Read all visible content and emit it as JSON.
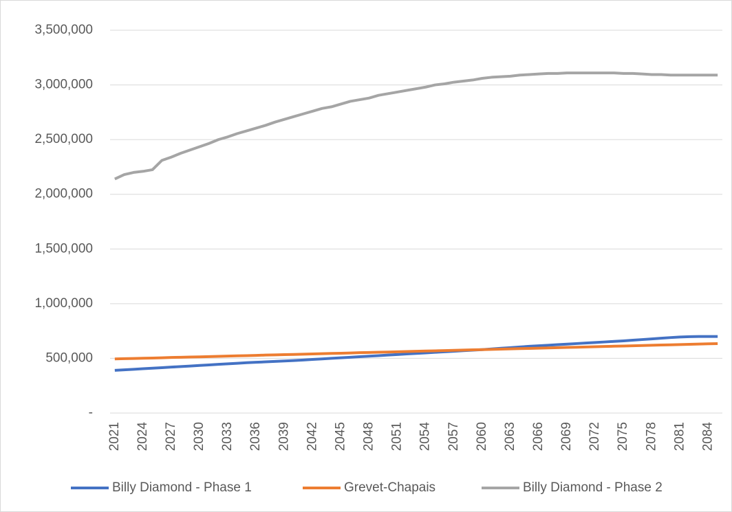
{
  "chart_data": {
    "type": "line",
    "categories": [
      "2021",
      null,
      null,
      "2024",
      null,
      null,
      "2027",
      null,
      null,
      "2030",
      null,
      null,
      "2033",
      null,
      null,
      "2036",
      null,
      null,
      "2039",
      null,
      null,
      "2042",
      null,
      null,
      "2045",
      null,
      null,
      "2048",
      null,
      null,
      "2051",
      null,
      null,
      "2054",
      null,
      null,
      "2057",
      null,
      null,
      "2060",
      null,
      null,
      "2063",
      null,
      null,
      "2066",
      null,
      null,
      "2069",
      null,
      null,
      "2072",
      null,
      null,
      "2075",
      null,
      null,
      "2078",
      null,
      null,
      "2081",
      null,
      null,
      "2084",
      null
    ],
    "series": [
      {
        "name": "Billy Diamond - Phase 1",
        "color": "#4472c4",
        "values": [
          390000,
          395000,
          400000,
          405000,
          410000,
          415000,
          420000,
          425000,
          430000,
          435000,
          440000,
          445000,
          450000,
          455000,
          460000,
          464000,
          468000,
          472000,
          476000,
          480000,
          485000,
          490000,
          495000,
          500000,
          505000,
          510000,
          515000,
          520000,
          525000,
          530000,
          535000,
          540000,
          545000,
          550000,
          555000,
          560000,
          565000,
          570000,
          575000,
          580000,
          586000,
          592000,
          598000,
          604000,
          610000,
          615000,
          620000,
          625000,
          630000,
          635000,
          640000,
          645000,
          650000,
          655000,
          660000,
          666000,
          672000,
          678000,
          684000,
          690000,
          695000,
          698000,
          700000,
          700000,
          700000
        ]
      },
      {
        "name": "Grevet-Chapais",
        "color": "#ed7d31",
        "values": [
          495000,
          497000,
          499000,
          501000,
          503000,
          505000,
          508000,
          510000,
          512000,
          514000,
          516000,
          518000,
          521000,
          523000,
          525000,
          527000,
          530000,
          532000,
          534000,
          536000,
          538000,
          540000,
          543000,
          545000,
          547000,
          549000,
          552000,
          554000,
          556000,
          558000,
          560000,
          562000,
          565000,
          567000,
          569000,
          571000,
          573000,
          576000,
          578000,
          580000,
          582000,
          584000,
          587000,
          589000,
          591000,
          593000,
          595000,
          598000,
          600000,
          602000,
          604000,
          606000,
          609000,
          611000,
          613000,
          615000,
          617000,
          620000,
          622000,
          624000,
          626000,
          628000,
          631000,
          633000,
          635000
        ]
      },
      {
        "name": "Billy Diamond - Phase 2",
        "color": "#a5a5a5",
        "values": [
          2140000,
          2180000,
          2200000,
          2210000,
          2225000,
          2310000,
          2340000,
          2375000,
          2405000,
          2435000,
          2465000,
          2500000,
          2525000,
          2555000,
          2580000,
          2605000,
          2630000,
          2660000,
          2685000,
          2710000,
          2735000,
          2760000,
          2785000,
          2800000,
          2825000,
          2850000,
          2865000,
          2880000,
          2905000,
          2920000,
          2935000,
          2950000,
          2965000,
          2980000,
          3000000,
          3010000,
          3025000,
          3035000,
          3045000,
          3060000,
          3070000,
          3075000,
          3080000,
          3090000,
          3095000,
          3100000,
          3105000,
          3105000,
          3110000,
          3110000,
          3110000,
          3110000,
          3110000,
          3110000,
          3105000,
          3105000,
          3100000,
          3095000,
          3095000,
          3090000,
          3090000,
          3090000,
          3090000,
          3090000,
          3090000
        ]
      }
    ],
    "ylim": [
      0,
      3500000
    ],
    "yticks": [
      {
        "value": 0,
        "label": "-"
      },
      {
        "value": 500000,
        "label": "500,000"
      },
      {
        "value": 1000000,
        "label": "1,000,000"
      },
      {
        "value": 1500000,
        "label": "1,500,000"
      },
      {
        "value": 2000000,
        "label": "2,000,000"
      },
      {
        "value": 2500000,
        "label": "2,500,000"
      },
      {
        "value": 3000000,
        "label": "3,000,000"
      },
      {
        "value": 3500000,
        "label": "3,500,000"
      }
    ],
    "grid": true,
    "legend": "bottom"
  }
}
